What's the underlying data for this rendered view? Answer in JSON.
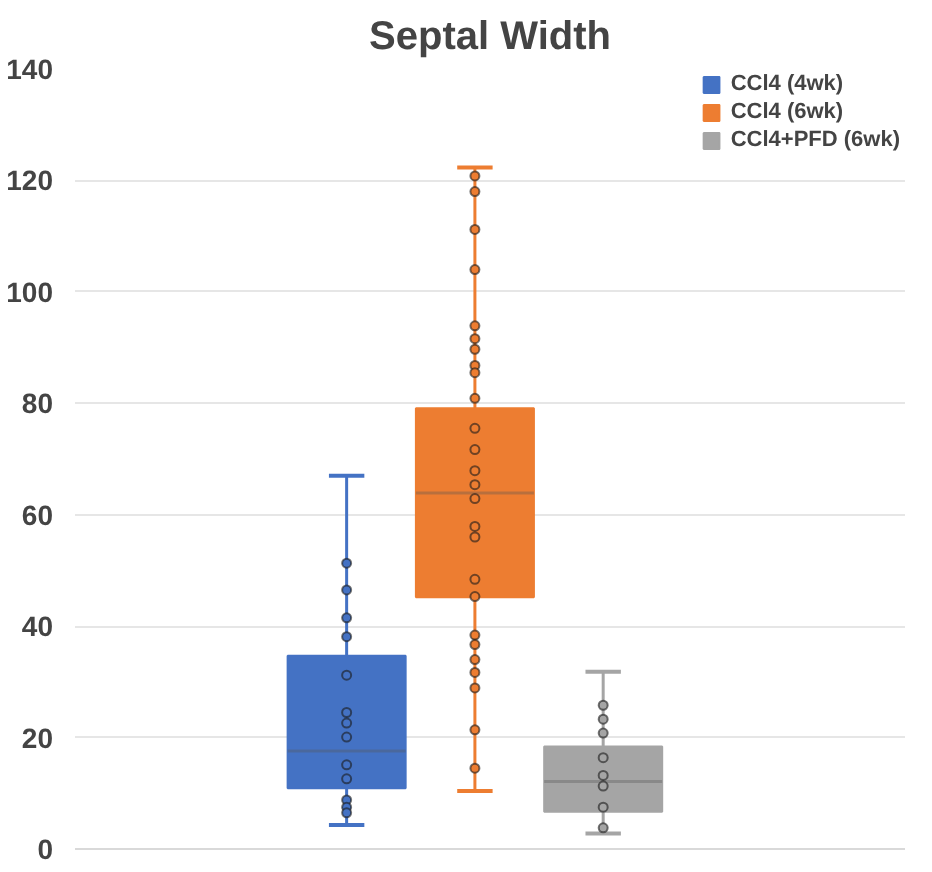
{
  "chart_data": {
    "type": "box",
    "title": "Septal Width",
    "categories": [
      null
    ],
    "series": [
      {
        "name": "CCl4 (4wk)",
        "color": "#4472c4",
        "boxes": [
          {
            "low": 4.3,
            "q1": 10.9,
            "median": 17.6,
            "q3": 34.7,
            "high": 67
          }
        ]
      },
      {
        "name": "CCl4 (6wk)",
        "color": "#ed7d31",
        "boxes": [
          {
            "low": 10.4,
            "q1": 45.2,
            "median": 63.9,
            "q3": 79.1,
            "high": 122.3
          }
        ]
      },
      {
        "name": "CCl4+PFD (6wk)",
        "color": "#a5a5a5",
        "boxes": [
          {
            "low": 2.8,
            "q1": 6.7,
            "median": 12.1,
            "q3": 18.4,
            "high": 31.8
          }
        ]
      },
      {
        "type": "scatter",
        "color": "#4472c4",
        "x": [
          null,
          null,
          null,
          null,
          null,
          null,
          null,
          null,
          null,
          null,
          null,
          null,
          null
        ],
        "values": [
          51.3,
          46.5,
          41.5,
          38.1,
          31.2,
          24.5,
          22.6,
          20.1,
          15.1,
          12.6,
          8.8,
          7.5,
          6.5
        ]
      },
      {
        "type": "scatter",
        "color": "#ed7d31",
        "x": [
          null,
          null,
          null,
          null,
          null,
          null,
          null,
          null,
          null,
          null,
          null,
          null,
          null,
          null,
          null,
          null,
          null,
          null,
          null,
          null,
          null,
          null,
          null,
          null,
          null,
          null
        ],
        "values": [
          120.8,
          118,
          111.2,
          104,
          93.9,
          91.6,
          89.7,
          86.8,
          85.5,
          80.9,
          75.5,
          71.7,
          67.9,
          65.4,
          62.9,
          57.9,
          56,
          48.4,
          45.3,
          38.4,
          36.7,
          34,
          31.7,
          28.9,
          21.4,
          14.5
        ]
      },
      {
        "type": "scatter",
        "color": "#a5a5a5",
        "x": [
          null,
          null,
          null,
          null,
          null,
          null,
          null,
          null
        ],
        "values": [
          25.8,
          23.3,
          20.8,
          16.4,
          13.2,
          11.3,
          7.5,
          3.8
        ]
      }
    ],
    "ylim": [
      0,
      140
    ],
    "yticks": [
      0,
      20,
      40,
      60,
      80,
      100,
      120,
      140
    ],
    "grid": "y",
    "legend": "top right",
    "tick_labels": "y",
    "marker": "circle"
  }
}
